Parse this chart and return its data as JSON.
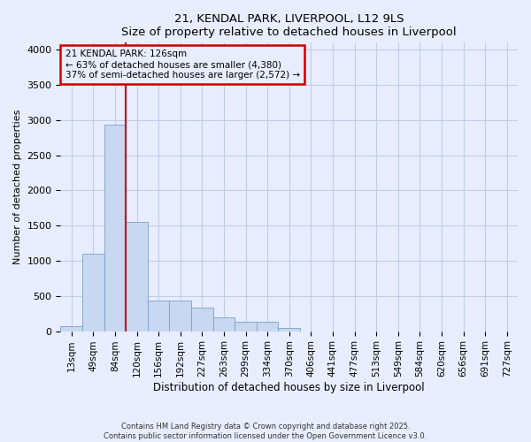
{
  "title_line1": "21, KENDAL PARK, LIVERPOOL, L12 9LS",
  "title_line2": "Size of property relative to detached houses in Liverpool",
  "xlabel": "Distribution of detached houses by size in Liverpool",
  "ylabel": "Number of detached properties",
  "categories": [
    "13sqm",
    "49sqm",
    "84sqm",
    "120sqm",
    "156sqm",
    "192sqm",
    "227sqm",
    "263sqm",
    "299sqm",
    "334sqm",
    "370sqm",
    "406sqm",
    "441sqm",
    "477sqm",
    "513sqm",
    "549sqm",
    "584sqm",
    "620sqm",
    "656sqm",
    "691sqm",
    "727sqm"
  ],
  "values": [
    75,
    1100,
    2930,
    1550,
    430,
    430,
    330,
    200,
    130,
    130,
    50,
    0,
    0,
    0,
    0,
    0,
    0,
    0,
    0,
    0,
    0
  ],
  "bar_color": "#c8d8f0",
  "bar_edge_color": "#7a9fc8",
  "vline_color": "#cc0000",
  "vline_pos": 2.5,
  "annotation_text": "21 KENDAL PARK: 126sqm\n← 63% of detached houses are smaller (4,380)\n37% of semi-detached houses are larger (2,572) →",
  "annotation_box_facecolor": "#e8eeff",
  "annotation_box_edgecolor": "#cc0000",
  "ylim": [
    0,
    4100
  ],
  "yticks": [
    0,
    500,
    1000,
    1500,
    2000,
    2500,
    3000,
    3500,
    4000
  ],
  "footer_line1": "Contains HM Land Registry data © Crown copyright and database right 2025.",
  "footer_line2": "Contains public sector information licensed under the Open Government Licence v3.0.",
  "bg_color": "#e8eeff",
  "grid_color": "#c0cce8",
  "title_fontsize": 9.5,
  "axis_fontsize": 7.5,
  "ylabel_fontsize": 8
}
